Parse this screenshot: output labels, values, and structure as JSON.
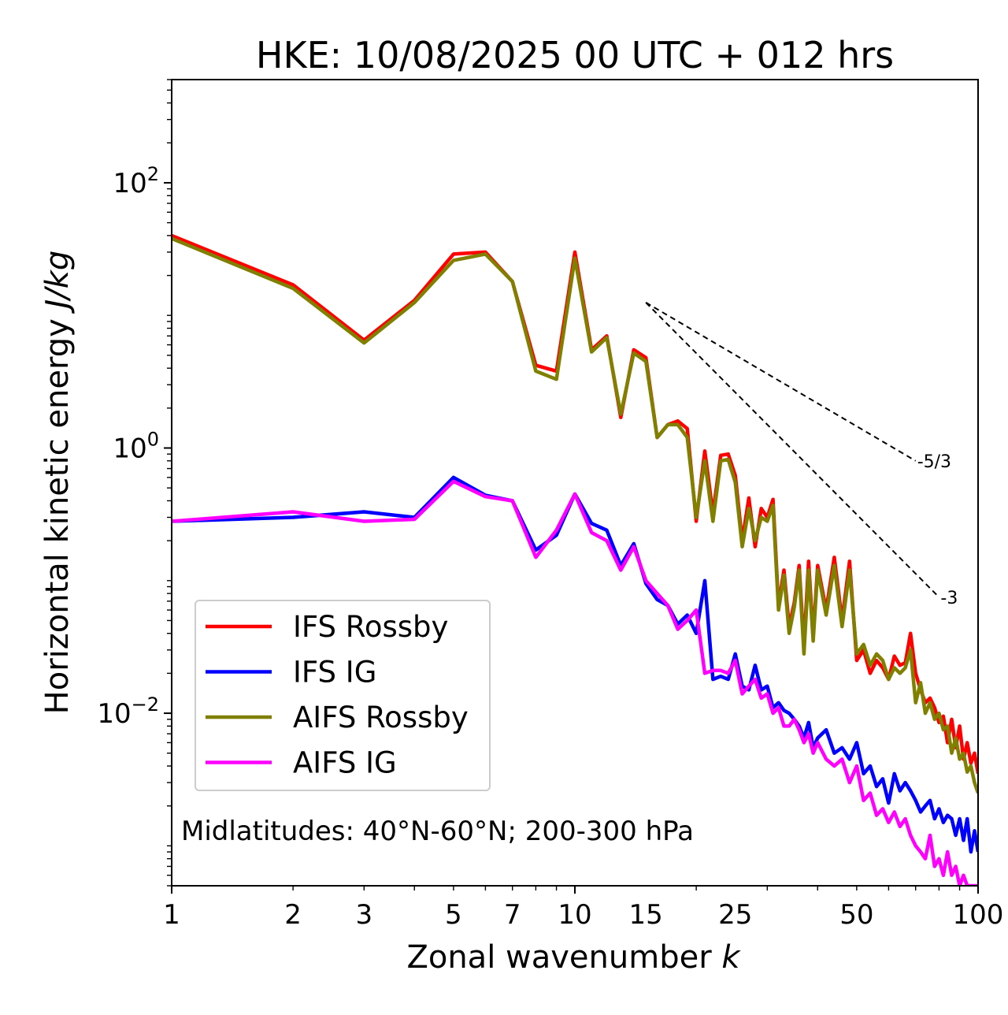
{
  "chart_data": {
    "type": "line",
    "title": "HKE: 10/08/2025 00 UTC + 012 hrs",
    "xlabel": "Zonal wavenumber",
    "xlabel_var": "k",
    "ylabel": "Horizontal kinetic energy",
    "ylabel_units": "J/kg",
    "xscale": "log",
    "yscale": "log",
    "xlim": [
      1,
      100
    ],
    "ylim": [
      0.0005,
      600
    ],
    "x_ticks": [
      1,
      2,
      3,
      5,
      7,
      10,
      15,
      25,
      50,
      100
    ],
    "x_tick_labels": [
      "1",
      "2",
      "3",
      "5",
      "7",
      "10",
      "15",
      "25",
      "50",
      "100"
    ],
    "y_ticks": [
      {
        "value": 0.01,
        "base": "10",
        "exp": "−2"
      },
      {
        "value": 1,
        "base": "10",
        "exp": "0"
      },
      {
        "value": 100,
        "base": "10",
        "exp": "2"
      }
    ],
    "annotation": "Midlatitudes: 40°N-60°N; 200-300 hPa",
    "legend": {
      "location": "lower-left"
    },
    "reference_lines": [
      {
        "label": "-5/3",
        "x0": 15,
        "y0": 12.5,
        "x1": 70,
        "y1": 0.8
      },
      {
        "label": "-3",
        "x0": 15,
        "y0": 12.5,
        "x1": 80,
        "y1": 0.075
      }
    ],
    "series": [
      {
        "name": "IFS Rossby",
        "color": "#ff0000",
        "x": [
          1,
          2,
          3,
          4,
          5,
          6,
          7,
          8,
          9,
          10,
          11,
          12,
          13,
          14,
          15,
          16,
          17,
          18,
          19,
          20,
          21,
          22,
          23,
          24,
          25,
          26,
          27,
          28,
          29,
          30,
          31,
          32,
          33,
          34,
          35,
          36,
          37,
          38,
          39,
          40,
          42,
          44,
          46,
          48,
          50,
          52,
          54,
          56,
          58,
          60,
          62,
          64,
          66,
          68,
          70,
          72,
          74,
          76,
          78,
          80,
          82,
          84,
          86,
          88,
          90,
          92,
          94,
          96,
          98,
          100
        ],
        "y": [
          40,
          17,
          6.5,
          13,
          29,
          30,
          18,
          4.2,
          3.8,
          30,
          5.5,
          7,
          1.7,
          5.5,
          4.8,
          1.2,
          1.5,
          1.6,
          1.4,
          0.28,
          0.95,
          0.32,
          0.88,
          0.9,
          0.62,
          0.2,
          0.42,
          0.18,
          0.35,
          0.3,
          0.41,
          0.065,
          0.12,
          0.045,
          0.068,
          0.13,
          0.032,
          0.14,
          0.038,
          0.13,
          0.06,
          0.15,
          0.05,
          0.14,
          0.025,
          0.03,
          0.02,
          0.025,
          0.022,
          0.018,
          0.027,
          0.023,
          0.024,
          0.04,
          0.02,
          0.015,
          0.012,
          0.013,
          0.011,
          0.0085,
          0.0095,
          0.006,
          0.009,
          0.0055,
          0.008,
          0.0045,
          0.006,
          0.0042,
          0.005,
          0.0035
        ]
      },
      {
        "name": "IFS IG",
        "color": "#0000ff",
        "x": [
          1,
          2,
          3,
          4,
          5,
          6,
          7,
          8,
          9,
          10,
          11,
          12,
          13,
          14,
          15,
          16,
          17,
          18,
          19,
          20,
          21,
          22,
          23,
          24,
          25,
          26,
          27,
          28,
          29,
          30,
          31,
          32,
          33,
          34,
          35,
          36,
          37,
          38,
          39,
          40,
          42,
          44,
          46,
          48,
          50,
          52,
          54,
          56,
          58,
          60,
          62,
          64,
          66,
          68,
          70,
          72,
          74,
          76,
          78,
          80,
          82,
          84,
          86,
          88,
          90,
          92,
          94,
          96,
          98,
          100
        ],
        "y": [
          0.28,
          0.3,
          0.33,
          0.3,
          0.6,
          0.44,
          0.4,
          0.17,
          0.22,
          0.45,
          0.27,
          0.24,
          0.13,
          0.19,
          0.095,
          0.072,
          0.065,
          0.047,
          0.055,
          0.04,
          0.1,
          0.018,
          0.019,
          0.018,
          0.028,
          0.016,
          0.015,
          0.023,
          0.015,
          0.016,
          0.011,
          0.012,
          0.0105,
          0.01,
          0.009,
          0.008,
          0.0065,
          0.0085,
          0.0055,
          0.0065,
          0.0075,
          0.005,
          0.0055,
          0.0045,
          0.006,
          0.0035,
          0.004,
          0.0028,
          0.0032,
          0.0021,
          0.0035,
          0.0026,
          0.003,
          0.0026,
          0.0022,
          0.0018,
          0.002,
          0.0022,
          0.0016,
          0.0019,
          0.0015,
          0.0017,
          0.0016,
          0.0012,
          0.0016,
          0.0011,
          0.0016,
          0.0009,
          0.0013,
          0.0009
        ]
      },
      {
        "name": "AIFS Rossby",
        "color": "#808000",
        "x": [
          1,
          2,
          3,
          4,
          5,
          6,
          7,
          8,
          9,
          10,
          11,
          12,
          13,
          14,
          15,
          16,
          17,
          18,
          19,
          20,
          21,
          22,
          23,
          24,
          25,
          26,
          27,
          28,
          29,
          30,
          31,
          32,
          33,
          34,
          35,
          36,
          37,
          38,
          39,
          40,
          42,
          44,
          46,
          48,
          50,
          52,
          54,
          56,
          58,
          60,
          62,
          64,
          66,
          68,
          70,
          72,
          74,
          76,
          78,
          80,
          82,
          84,
          86,
          88,
          90,
          92,
          94,
          96,
          98,
          100
        ],
        "y": [
          38,
          16,
          6.2,
          12.5,
          26,
          29,
          18,
          3.8,
          3.3,
          27,
          5.3,
          6.8,
          1.8,
          5.2,
          4.5,
          1.2,
          1.5,
          1.5,
          1.2,
          0.3,
          0.8,
          0.28,
          0.8,
          0.82,
          0.55,
          0.18,
          0.35,
          0.2,
          0.3,
          0.28,
          0.37,
          0.06,
          0.11,
          0.04,
          0.063,
          0.12,
          0.028,
          0.12,
          0.035,
          0.12,
          0.055,
          0.13,
          0.045,
          0.12,
          0.028,
          0.033,
          0.023,
          0.028,
          0.025,
          0.018,
          0.022,
          0.02,
          0.022,
          0.03,
          0.012,
          0.017,
          0.01,
          0.012,
          0.009,
          0.01,
          0.0075,
          0.008,
          0.005,
          0.0065,
          0.0045,
          0.005,
          0.0036,
          0.004,
          0.003,
          0.0025
        ]
      },
      {
        "name": "AIFS IG",
        "color": "#ff00ff",
        "x": [
          1,
          2,
          3,
          4,
          5,
          6,
          7,
          8,
          9,
          10,
          11,
          12,
          13,
          14,
          15,
          16,
          17,
          18,
          19,
          20,
          21,
          22,
          23,
          24,
          25,
          26,
          27,
          28,
          29,
          30,
          31,
          32,
          33,
          34,
          35,
          36,
          37,
          38,
          39,
          40,
          42,
          44,
          46,
          48,
          50,
          52,
          54,
          56,
          58,
          60,
          62,
          64,
          66,
          68,
          70,
          72,
          74,
          76,
          78,
          80,
          82,
          84,
          86,
          88,
          90,
          92,
          94,
          96,
          98,
          100
        ],
        "y": [
          0.28,
          0.33,
          0.28,
          0.29,
          0.56,
          0.43,
          0.4,
          0.15,
          0.24,
          0.45,
          0.23,
          0.2,
          0.12,
          0.18,
          0.1,
          0.08,
          0.065,
          0.043,
          0.05,
          0.06,
          0.02,
          0.021,
          0.021,
          0.02,
          0.025,
          0.014,
          0.016,
          0.018,
          0.013,
          0.014,
          0.01,
          0.011,
          0.008,
          0.008,
          0.009,
          0.0075,
          0.006,
          0.007,
          0.005,
          0.006,
          0.0045,
          0.004,
          0.0045,
          0.003,
          0.004,
          0.0022,
          0.0025,
          0.0017,
          0.0019,
          0.0015,
          0.0018,
          0.0014,
          0.0016,
          0.0012,
          0.001,
          0.0009,
          0.0008,
          0.0012,
          0.0007,
          0.0008,
          0.0006,
          0.0009,
          0.0006,
          0.0007,
          0.0005,
          0.0006,
          0.0005,
          0.0005,
          0.0005,
          0.0005
        ]
      }
    ]
  }
}
